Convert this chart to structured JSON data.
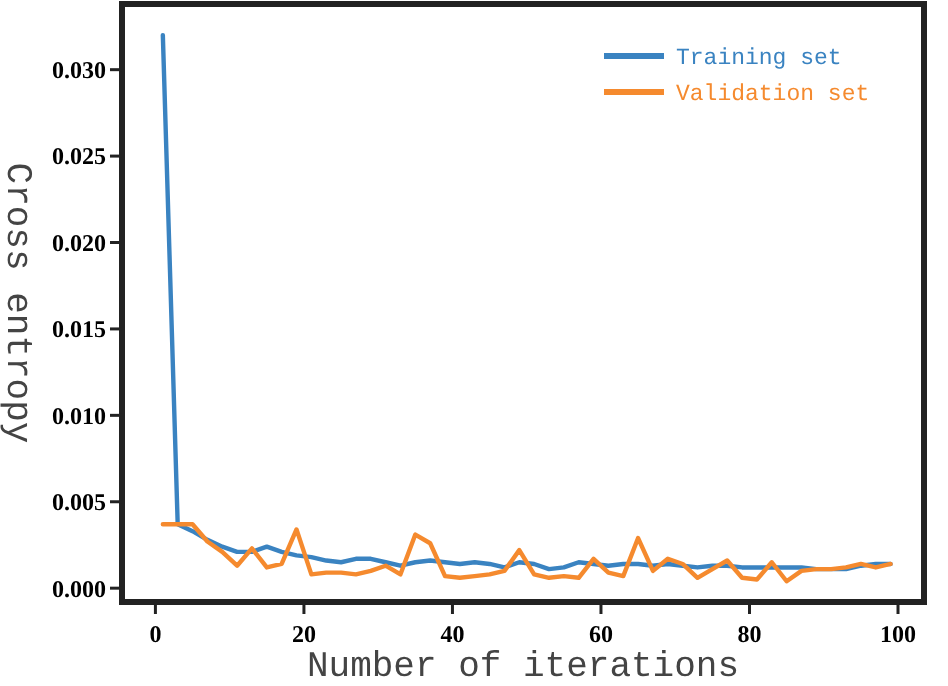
{
  "chart_data": {
    "type": "line",
    "xlabel": "Number of iterations",
    "ylabel": "Cross entropy",
    "x": [
      1,
      3,
      5,
      7,
      9,
      11,
      13,
      15,
      17,
      19,
      21,
      23,
      25,
      27,
      29,
      31,
      33,
      35,
      37,
      39,
      41,
      43,
      45,
      47,
      49,
      51,
      53,
      55,
      57,
      59,
      61,
      63,
      65,
      67,
      69,
      71,
      73,
      75,
      77,
      79,
      81,
      83,
      85,
      87,
      89,
      91,
      93,
      95,
      97,
      99
    ],
    "series": [
      {
        "name": "Training set",
        "color": "#3a83c1",
        "values": [
          0.032,
          0.0037,
          0.0033,
          0.0028,
          0.0024,
          0.0021,
          0.0021,
          0.0024,
          0.0021,
          0.0019,
          0.0018,
          0.0016,
          0.0015,
          0.0017,
          0.0017,
          0.0015,
          0.0013,
          0.0015,
          0.0016,
          0.0015,
          0.0014,
          0.0015,
          0.0014,
          0.0012,
          0.0015,
          0.0014,
          0.0011,
          0.0012,
          0.0015,
          0.0014,
          0.0013,
          0.0014,
          0.0014,
          0.0013,
          0.0014,
          0.0013,
          0.0012,
          0.0013,
          0.0013,
          0.0012,
          0.0012,
          0.0012,
          0.0012,
          0.0012,
          0.0011,
          0.0011,
          0.0011,
          0.0013,
          0.0014,
          0.0014
        ]
      },
      {
        "name": "Validation set",
        "color": "#f58a2e",
        "values": [
          0.0037,
          0.0037,
          0.0037,
          0.0027,
          0.0021,
          0.0013,
          0.0023,
          0.0012,
          0.0014,
          0.0034,
          0.0008,
          0.0009,
          0.0009,
          0.0008,
          0.001,
          0.0013,
          0.0008,
          0.0031,
          0.0026,
          0.0007,
          0.0006,
          0.0007,
          0.0008,
          0.001,
          0.0022,
          0.0008,
          0.0006,
          0.0007,
          0.0006,
          0.0017,
          0.0009,
          0.0007,
          0.0029,
          0.001,
          0.0017,
          0.0014,
          0.0006,
          0.0011,
          0.0016,
          0.0006,
          0.0005,
          0.0015,
          0.0004,
          0.001,
          0.0011,
          0.0011,
          0.0012,
          0.0014,
          0.0012,
          0.0014
        ]
      }
    ],
    "xlim": [
      -4.5,
      103.5
    ],
    "ylim": [
      -0.0008,
      0.0338
    ],
    "xticks": [
      0,
      20,
      40,
      60,
      80,
      100
    ],
    "yticks": [
      {
        "value": 0,
        "label": "0.000"
      },
      {
        "value": 0.005,
        "label": "0.005"
      },
      {
        "value": 0.01,
        "label": "0.010"
      },
      {
        "value": 0.015,
        "label": "0.015"
      },
      {
        "value": 0.02,
        "label": "0.020"
      },
      {
        "value": 0.025,
        "label": "0.025"
      },
      {
        "value": 0.03,
        "label": "0.030"
      }
    ],
    "grid": false,
    "legend": "top right",
    "line_style": "solid"
  }
}
